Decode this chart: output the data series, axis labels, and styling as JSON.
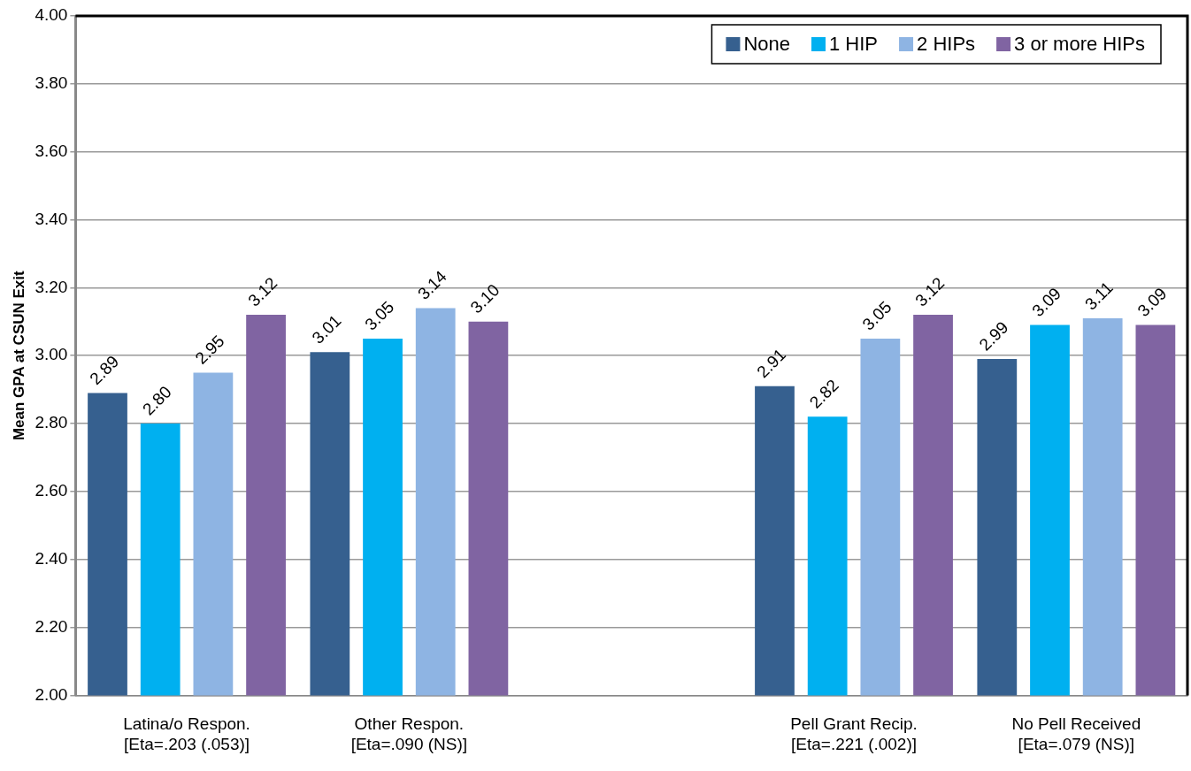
{
  "chart_data": {
    "type": "bar",
    "ylabel": "Mean GPA at CSUN Exit",
    "categories": [
      "Latina/o Respon.\n[Eta=.203 (.053)]",
      "Other Respon.\n[Eta=.090 (NS)]",
      null,
      "Pell Grant Recip.\n[Eta=.221 (.002)]",
      "No Pell Received\n[Eta=.079 (NS)]"
    ],
    "series": [
      {
        "name": "None",
        "color": "#36608f",
        "values": [
          2.89,
          3.01,
          null,
          2.91,
          2.99
        ],
        "value_labels": [
          "2.89",
          "3.01",
          null,
          "2.91",
          "2.99"
        ]
      },
      {
        "name": "1 HIP",
        "color": "#00b0f0",
        "values": [
          2.8,
          3.05,
          null,
          2.82,
          3.09
        ],
        "value_labels": [
          "2.80",
          "3.05",
          null,
          "2.82",
          "3.09"
        ]
      },
      {
        "name": "2 HIPs",
        "color": "#8eb4e3",
        "values": [
          2.95,
          3.14,
          null,
          3.05,
          3.11
        ],
        "value_labels": [
          "2.95",
          "3.14",
          null,
          "3.05",
          "3.11"
        ]
      },
      {
        "name": "3 or more HIPs",
        "color": "#8064a2",
        "values": [
          3.12,
          3.1,
          null,
          3.12,
          3.09
        ],
        "value_labels": [
          "3.12",
          "3.10",
          null,
          "3.12",
          "3.09"
        ]
      }
    ],
    "ylim": [
      2.0,
      4.0
    ],
    "yticks": [
      {
        "value": 2,
        "label": "2.00"
      },
      {
        "value": 2.2,
        "label": "2.20"
      },
      {
        "value": 2.4,
        "label": "2.40"
      },
      {
        "value": 2.6,
        "label": "2.60"
      },
      {
        "value": 2.8,
        "label": "2.80"
      },
      {
        "value": 3,
        "label": "3.00"
      },
      {
        "value": 3.2,
        "label": "3.20"
      },
      {
        "value": 3.4,
        "label": "3.40"
      },
      {
        "value": 3.6,
        "label": "3.60"
      },
      {
        "value": 3.8,
        "label": "3.80"
      },
      {
        "value": 4,
        "label": "4.00"
      }
    ],
    "grid": "y",
    "legend": "top right"
  }
}
